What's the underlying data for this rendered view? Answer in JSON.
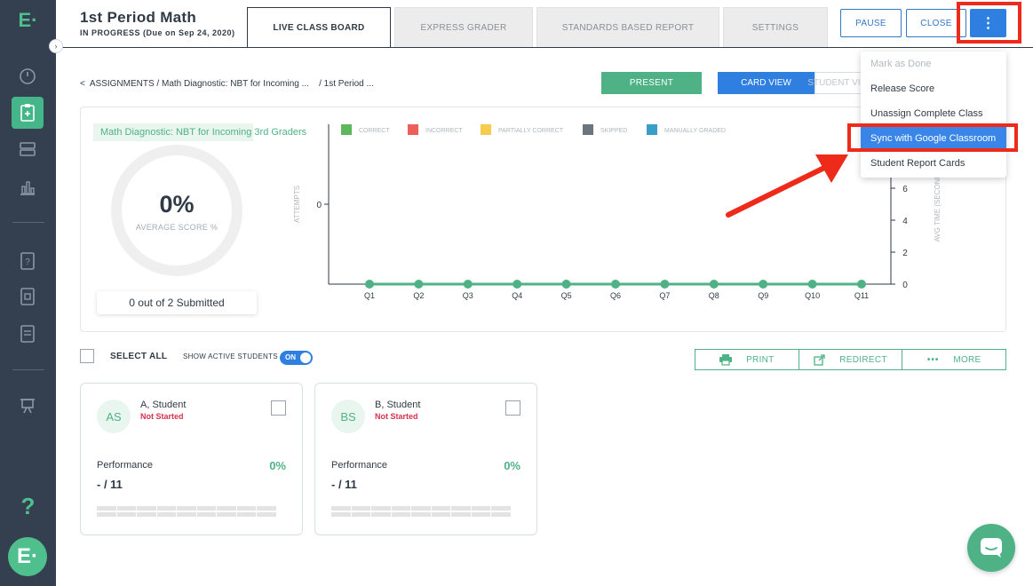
{
  "sidebar": {
    "logo": "E·",
    "help": "?",
    "bottom_logo": "E·"
  },
  "header": {
    "title": "1st Period Math",
    "status": "IN PROGRESS (Due on Sep 24, 2020)",
    "tabs": [
      {
        "label": "LIVE CLASS BOARD",
        "active": true
      },
      {
        "label": "EXPRESS GRADER",
        "active": false
      },
      {
        "label": "STANDARDS BASED REPORT",
        "active": false
      },
      {
        "label": "SETTINGS",
        "active": false
      }
    ],
    "pause_label": "PAUSE",
    "close_label": "CLOSE",
    "menu_label": "⋮"
  },
  "breadcrumb": {
    "back": "<",
    "text": "ASSIGNMENTS / Math Diagnostic: NBT for Incoming ...",
    "class": "/ 1st Period ..."
  },
  "view": {
    "present_label": "PRESENT",
    "card_view_label": "CARD VIEW",
    "student_view_label": "STUDENT VIEW"
  },
  "summary": {
    "assignment_name": "Math Diagnostic: NBT for Incoming 3rd Graders",
    "average_score": "0%",
    "average_label": "AVERAGE SCORE %",
    "submitted": "0 out of 2 Submitted"
  },
  "chart_data": {
    "type": "line",
    "legend": [
      {
        "label": "CORRECT",
        "color": "#5cb85c"
      },
      {
        "label": "INCORRECT",
        "color": "#ee5f5b"
      },
      {
        "label": "PARTIALLY CORRECT",
        "color": "#f7cb4d"
      },
      {
        "label": "SKIPPED",
        "color": "#6c757d"
      },
      {
        "label": "MANUALLY GRADED",
        "color": "#3a9fc8"
      }
    ],
    "categories": [
      "Q1",
      "Q2",
      "Q3",
      "Q4",
      "Q5",
      "Q6",
      "Q7",
      "Q8",
      "Q9",
      "Q10",
      "Q11"
    ],
    "series": [
      {
        "values": [
          0,
          0,
          0,
          0,
          0,
          0,
          0,
          0,
          0,
          0,
          0
        ]
      }
    ],
    "ylabel": "ATTEMPTS",
    "y_ticks": [
      "0"
    ],
    "y2label": "AVG TIME (SECONDS)",
    "y2_ticks": [
      "0",
      "2",
      "4",
      "6"
    ],
    "line_color": "#4fb286"
  },
  "toolbar": {
    "select_all": "SELECT ALL",
    "show_active": "SHOW ACTIVE STUDENTS",
    "toggle_label": "ON",
    "print": "PRINT",
    "redirect": "REDIRECT",
    "more": "MORE",
    "more_icon": "•••"
  },
  "students": [
    {
      "initials": "AS",
      "name": "A, Student",
      "status": "Not Started",
      "performance_label": "Performance",
      "percent": "0%",
      "score": "- / 11"
    },
    {
      "initials": "BS",
      "name": "B, Student",
      "status": "Not Started",
      "performance_label": "Performance",
      "percent": "0%",
      "score": "- / 11"
    }
  ],
  "dropdown": {
    "items": [
      {
        "label": "Mark as Done",
        "disabled": true
      },
      {
        "label": "Release Score",
        "disabled": false
      },
      {
        "label": "Unassign Complete Class",
        "disabled": false
      },
      {
        "label": "Sync with Google Classroom",
        "highlight": true
      },
      {
        "label": "Student Report Cards",
        "disabled": false
      }
    ]
  },
  "colors": {
    "sidebar": "#34404f",
    "accent_green": "#4fb286",
    "accent_blue": "#2f7fe0",
    "annotation_red": "#ee2a1b"
  }
}
